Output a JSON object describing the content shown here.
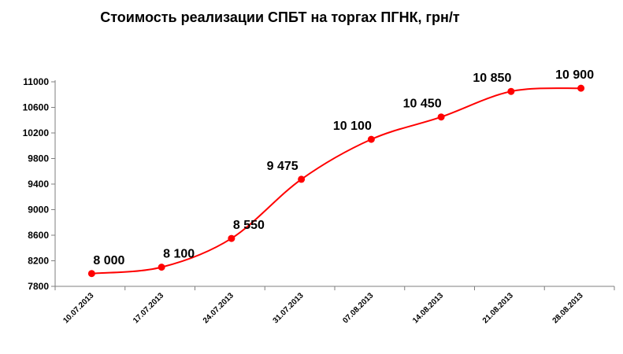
{
  "chart_data": {
    "type": "line",
    "title": "Стоимость реализации СПБТ на торгах ПГНК, грн/т",
    "xlabel": "",
    "ylabel": "",
    "categories": [
      "10.07.2013",
      "17.07.2013",
      "24.07.2013",
      "31.07.2013",
      "07.08.2013",
      "14.08.2013",
      "21.08.2013",
      "28.08.2013"
    ],
    "series": [
      {
        "values": [
          8000,
          8100,
          8550,
          9475,
          10100,
          10450,
          10850,
          10900
        ],
        "data_labels": [
          "8 000",
          "8 100",
          "8 550",
          "9 475",
          "10 100",
          "10 450",
          "10 850",
          "10 900"
        ],
        "color": "#ff0000",
        "smooth": true
      }
    ],
    "yticks": [
      "7800",
      "8200",
      "8600",
      "9000",
      "9400",
      "9800",
      "10200",
      "10600",
      "11000"
    ],
    "ylim": [
      7800,
      11000
    ],
    "grid": false,
    "legend": "none"
  }
}
